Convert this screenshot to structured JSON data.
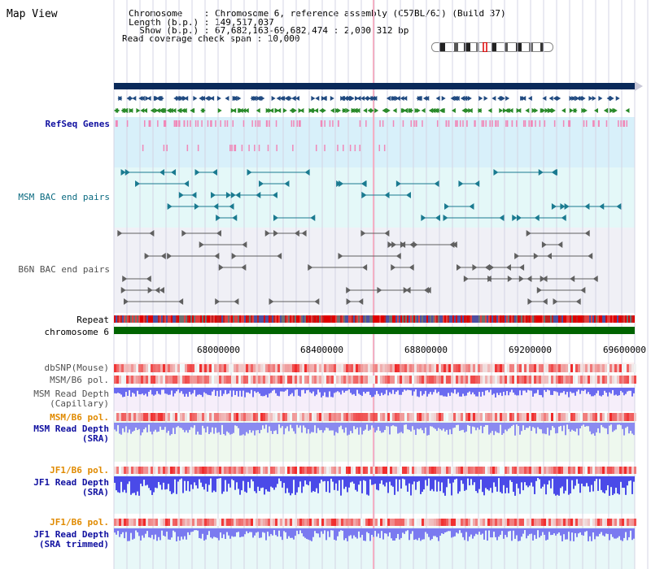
{
  "header": {
    "title": "Map View",
    "chromosome_line": "Chromosome    : Chromosome 6, reference assembly (C57BL/6J) (Build 37)",
    "length_line": "Length (b.p.) : 149,517,037",
    "show_line": "  Show (b.p.) : 67,682,163-69,682,474 : 2,000,312 bp",
    "span_line": "Read coverage check span : 10,000"
  },
  "tracks": {
    "refseq": "RefSeq Genes",
    "msm_bac": "MSM BAC end pairs",
    "b6n_bac": "B6N BAC end pairs",
    "repeat": "Repeat",
    "chromosome": "chromosome 6",
    "dbsnp": "dbSNP(Mouse)",
    "msm_b6_pol_1": "MSM/B6 pol.",
    "msm_depth_cap_1": "MSM Read Depth",
    "msm_depth_cap_2": "(Capillary)",
    "msm_b6_pol_2": "MSM/B6 pol.",
    "msm_depth_sra_1": "MSM Read Depth",
    "msm_depth_sra_2": "(SRA)",
    "jf1_b6_pol_1": "JF1/B6 pol.",
    "jf1_depth_sra_1": "JF1 Read Depth",
    "jf1_depth_sra_2": "(SRA)",
    "jf1_b6_pol_2": "JF1/B6 pol.",
    "jf1_depth_trim_1": "JF1 Read Depth",
    "jf1_depth_trim_2": "(SRA trimmed)"
  },
  "axis": {
    "ticks": [
      "68000000",
      "68400000",
      "68800000",
      "69200000",
      "69600000"
    ]
  },
  "colors": {
    "navy": "#0a2a5a",
    "refseq_bg": "#d8f0fa",
    "msm_bg": "#e4f8f8",
    "b6n_bg": "#f0f0f6",
    "teal_label": "#0a6a80",
    "gray_label": "#505050",
    "blue_label": "#1010a0",
    "orange_label": "#e08a00",
    "green_chrom": "#006400",
    "depth_blue": "#4a4ae8"
  }
}
